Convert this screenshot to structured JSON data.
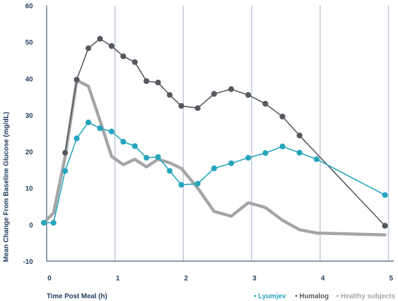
{
  "chart_data": {
    "type": "line",
    "title": "",
    "xlabel": "Time Post Meal (h)",
    "ylabel": "Mean Change From Baseline Glucose (mg/dL)",
    "xlim": [
      0,
      5
    ],
    "ylim": [
      -10,
      60
    ],
    "x_ticks": [
      "0",
      "1",
      "2",
      "3",
      "4",
      "5"
    ],
    "y_ticks": [
      "60",
      "50",
      "40",
      "30",
      "20",
      "10",
      "0",
      "-10"
    ],
    "grid": "vertical",
    "legend": "bottom-right",
    "series": [
      {
        "name": "Lyumjev",
        "color": "#27a5bd",
        "marker": true,
        "points": [
          [
            -0.04,
            0.5
          ],
          [
            0.1,
            0.5
          ],
          [
            0.27,
            14.7
          ],
          [
            0.44,
            23.6
          ],
          [
            0.61,
            28.0
          ],
          [
            0.78,
            26.4
          ],
          [
            0.95,
            25.5
          ],
          [
            1.12,
            22.7
          ],
          [
            1.29,
            21.5
          ],
          [
            1.46,
            18.3
          ],
          [
            1.63,
            18.5
          ],
          [
            1.8,
            14.7
          ],
          [
            1.97,
            10.9
          ],
          [
            2.21,
            11.2
          ],
          [
            2.45,
            15.4
          ],
          [
            2.7,
            16.8
          ],
          [
            2.95,
            18.3
          ],
          [
            3.2,
            19.6
          ],
          [
            3.45,
            21.4
          ],
          [
            3.7,
            19.7
          ],
          [
            3.95,
            17.9
          ],
          [
            4.95,
            8.1
          ]
        ]
      },
      {
        "name": "Humalog",
        "color": "#55585e",
        "marker": true,
        "points": [
          [
            0.27,
            19.7
          ],
          [
            0.44,
            39.7
          ],
          [
            0.61,
            48.3
          ],
          [
            0.78,
            50.9
          ],
          [
            0.95,
            48.9
          ],
          [
            1.12,
            46.1
          ],
          [
            1.29,
            44.5
          ],
          [
            1.46,
            39.3
          ],
          [
            1.63,
            38.9
          ],
          [
            1.8,
            35.5
          ],
          [
            1.97,
            32.5
          ],
          [
            2.21,
            31.9
          ],
          [
            2.45,
            35.8
          ],
          [
            2.7,
            37.1
          ],
          [
            2.95,
            35.5
          ],
          [
            3.2,
            33.1
          ],
          [
            3.45,
            29.6
          ],
          [
            3.7,
            24.4
          ],
          [
            4.95,
            -0.3
          ]
        ]
      },
      {
        "name": "Healthy subjects",
        "color": "#a3a5a8",
        "marker": false,
        "points": [
          [
            -0.04,
            0.5
          ],
          [
            0.1,
            3.2
          ],
          [
            0.27,
            18.5
          ],
          [
            0.44,
            39.5
          ],
          [
            0.61,
            37.9
          ],
          [
            0.78,
            28.5
          ],
          [
            0.95,
            18.7
          ],
          [
            1.12,
            16.4
          ],
          [
            1.29,
            17.9
          ],
          [
            1.46,
            15.8
          ],
          [
            1.63,
            17.9
          ],
          [
            1.8,
            16.9
          ],
          [
            1.97,
            15.4
          ],
          [
            2.21,
            10.0
          ],
          [
            2.45,
            3.6
          ],
          [
            2.7,
            2.3
          ],
          [
            2.95,
            6.0
          ],
          [
            3.2,
            4.7
          ],
          [
            3.45,
            1.2
          ],
          [
            3.7,
            -1.4
          ],
          [
            3.95,
            -2.3
          ],
          [
            4.95,
            -2.8
          ]
        ]
      }
    ]
  }
}
